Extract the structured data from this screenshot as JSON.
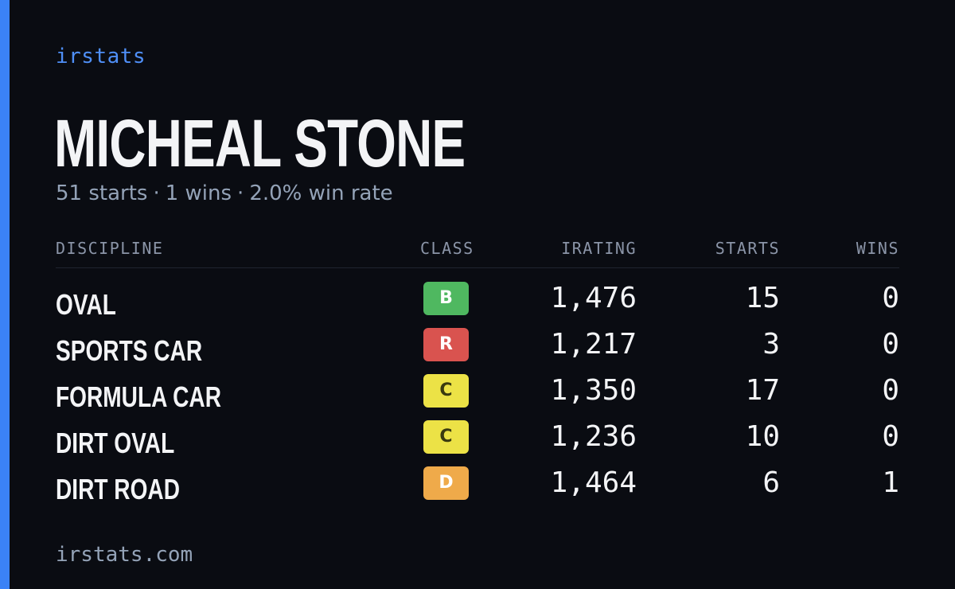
{
  "brand": "irstats",
  "driver": {
    "name": "MICHEAL STONE",
    "summary": {
      "starts": "51 starts",
      "wins": "1 wins",
      "win_rate": "2.0% win rate",
      "separator": "·"
    }
  },
  "table": {
    "headers": {
      "discipline": "DISCIPLINE",
      "class": "CLASS",
      "irating": "IRATING",
      "starts": "STARTS",
      "wins": "WINS"
    },
    "rows": [
      {
        "discipline": "OVAL",
        "class": "B",
        "class_color": "#4fb860",
        "class_text_color": "#ffffff",
        "irating": "1,476",
        "starts": "15",
        "wins": "0"
      },
      {
        "discipline": "SPORTS CAR",
        "class": "R",
        "class_color": "#d9534f",
        "class_text_color": "#ffffff",
        "irating": "1,217",
        "starts": "3",
        "wins": "0"
      },
      {
        "discipline": "FORMULA CAR",
        "class": "C",
        "class_color": "#ece246",
        "class_text_color": "#3a3a10",
        "irating": "1,350",
        "starts": "17",
        "wins": "0"
      },
      {
        "discipline": "DIRT OVAL",
        "class": "C",
        "class_color": "#ece246",
        "class_text_color": "#3a3a10",
        "irating": "1,236",
        "starts": "10",
        "wins": "0"
      },
      {
        "discipline": "DIRT ROAD",
        "class": "D",
        "class_color": "#efaa4a",
        "class_text_color": "#ffffff",
        "irating": "1,464",
        "starts": "6",
        "wins": "1"
      }
    ]
  },
  "footer": {
    "url": "irstats.com"
  },
  "colors": {
    "accent": "#3b82f6",
    "background": "#0a0c12"
  }
}
